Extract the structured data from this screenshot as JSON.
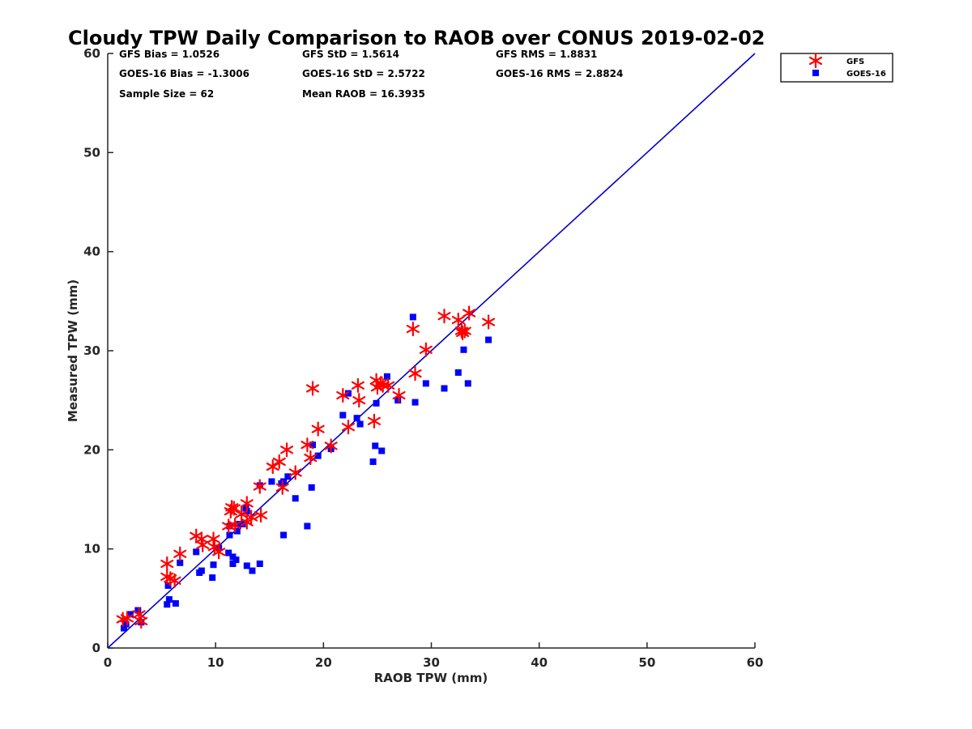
{
  "chart_data": {
    "type": "scatter",
    "title": "Cloudy TPW Daily Comparison to RAOB over CONUS 2019-02-02",
    "xlabel": "RAOB TPW (mm)",
    "ylabel": "Measured TPW (mm)",
    "xlim": [
      0,
      60
    ],
    "ylim": [
      0,
      60
    ],
    "xticks": [
      "0",
      "10",
      "20",
      "30",
      "40",
      "50",
      "60"
    ],
    "yticks": [
      "0",
      "10",
      "20",
      "30",
      "40",
      "50",
      "60"
    ],
    "grid": false,
    "legend_position": "top-right, outside plot",
    "reference_line": {
      "x": [
        0,
        60
      ],
      "y": [
        0,
        60
      ],
      "color": "#0000cc"
    },
    "stats": {
      "gfs_bias": "GFS Bias = 1.0526",
      "gfs_std": "GFS StD = 1.5614",
      "gfs_rms": "GFS RMS = 1.8831",
      "goes_bias": "GOES-16 Bias = -1.3006",
      "goes_std": "GOES-16 StD = 2.5722",
      "goes_rms": "GOES-16 RMS = 2.8824",
      "sample_size": "Sample Size = 62",
      "mean_raob": "Mean RAOB = 16.3935"
    },
    "series": [
      {
        "name": "GFS",
        "marker": "asterisk",
        "color": "#ff0000",
        "points": [
          [
            1.4,
            2.9
          ],
          [
            1.8,
            3.0
          ],
          [
            2.9,
            3.4
          ],
          [
            3.1,
            2.7
          ],
          [
            5.5,
            8.5
          ],
          [
            5.5,
            7.2
          ],
          [
            5.8,
            7.0
          ],
          [
            6.2,
            6.8
          ],
          [
            6.7,
            9.5
          ],
          [
            8.2,
            11.3
          ],
          [
            8.7,
            11.0
          ],
          [
            8.8,
            10.4
          ],
          [
            9.8,
            11.0
          ],
          [
            9.9,
            10.2
          ],
          [
            10.3,
            9.7
          ],
          [
            11.2,
            12.3
          ],
          [
            11.4,
            13.8
          ],
          [
            11.5,
            14.2
          ],
          [
            11.7,
            14.1
          ],
          [
            11.8,
            12.4
          ],
          [
            12.4,
            13.5
          ],
          [
            12.9,
            14.6
          ],
          [
            12.9,
            12.7
          ],
          [
            13.3,
            13.2
          ],
          [
            14.1,
            16.3
          ],
          [
            14.2,
            13.4
          ],
          [
            15.3,
            18.3
          ],
          [
            15.9,
            18.8
          ],
          [
            16.2,
            16.2
          ],
          [
            16.6,
            20.0
          ],
          [
            17.4,
            17.7
          ],
          [
            18.5,
            20.5
          ],
          [
            18.8,
            19.2
          ],
          [
            19.0,
            26.2
          ],
          [
            19.5,
            22.1
          ],
          [
            20.7,
            20.4
          ],
          [
            21.8,
            25.5
          ],
          [
            22.3,
            22.3
          ],
          [
            23.2,
            26.5
          ],
          [
            23.3,
            25.0
          ],
          [
            24.7,
            22.9
          ],
          [
            24.9,
            27.0
          ],
          [
            25.0,
            26.3
          ],
          [
            25.3,
            26.7
          ],
          [
            25.5,
            26.5
          ],
          [
            26.0,
            26.5
          ],
          [
            27.0,
            25.5
          ],
          [
            28.3,
            32.2
          ],
          [
            28.5,
            27.7
          ],
          [
            29.5,
            30.1
          ],
          [
            31.2,
            33.5
          ],
          [
            32.5,
            33.1
          ],
          [
            32.8,
            32.0
          ],
          [
            32.9,
            31.8
          ],
          [
            33.1,
            32.0
          ],
          [
            33.5,
            33.8
          ],
          [
            35.3,
            32.9
          ]
        ]
      },
      {
        "name": "GOES-16",
        "marker": "square",
        "color": "#0000ff",
        "points": [
          [
            1.5,
            2.0
          ],
          [
            1.7,
            2.4
          ],
          [
            2.1,
            3.4
          ],
          [
            2.8,
            3.8
          ],
          [
            3.1,
            2.6
          ],
          [
            5.5,
            4.4
          ],
          [
            5.6,
            6.3
          ],
          [
            5.7,
            4.9
          ],
          [
            6.3,
            4.5
          ],
          [
            6.7,
            8.6
          ],
          [
            8.2,
            9.7
          ],
          [
            8.5,
            7.6
          ],
          [
            8.7,
            7.8
          ],
          [
            9.7,
            7.1
          ],
          [
            9.8,
            8.4
          ],
          [
            10.3,
            10.1
          ],
          [
            11.2,
            9.6
          ],
          [
            11.3,
            11.4
          ],
          [
            11.3,
            12.3
          ],
          [
            11.6,
            9.2
          ],
          [
            11.6,
            8.5
          ],
          [
            11.9,
            8.9
          ],
          [
            12.0,
            11.8
          ],
          [
            12.2,
            12.5
          ],
          [
            12.5,
            12.5
          ],
          [
            12.8,
            14.1
          ],
          [
            12.9,
            13.8
          ],
          [
            12.9,
            8.3
          ],
          [
            13.4,
            7.8
          ],
          [
            14.1,
            8.5
          ],
          [
            14.1,
            16.4
          ],
          [
            15.2,
            16.8
          ],
          [
            16.1,
            16.6
          ],
          [
            16.3,
            11.4
          ],
          [
            16.3,
            16.8
          ],
          [
            16.7,
            17.3
          ],
          [
            17.4,
            15.1
          ],
          [
            18.5,
            12.3
          ],
          [
            18.9,
            16.2
          ],
          [
            19.0,
            20.5
          ],
          [
            19.5,
            19.4
          ],
          [
            20.7,
            20.1
          ],
          [
            21.8,
            23.5
          ],
          [
            22.3,
            25.7
          ],
          [
            23.1,
            23.2
          ],
          [
            23.4,
            22.6
          ],
          [
            24.6,
            18.8
          ],
          [
            24.8,
            20.4
          ],
          [
            24.9,
            24.7
          ],
          [
            25.4,
            19.9
          ],
          [
            25.9,
            27.4
          ],
          [
            26.9,
            25.0
          ],
          [
            28.3,
            33.4
          ],
          [
            28.5,
            24.8
          ],
          [
            29.5,
            26.7
          ],
          [
            31.2,
            26.2
          ],
          [
            32.5,
            27.8
          ],
          [
            33.0,
            30.1
          ],
          [
            33.4,
            26.7
          ],
          [
            35.3,
            31.1
          ]
        ]
      }
    ]
  }
}
